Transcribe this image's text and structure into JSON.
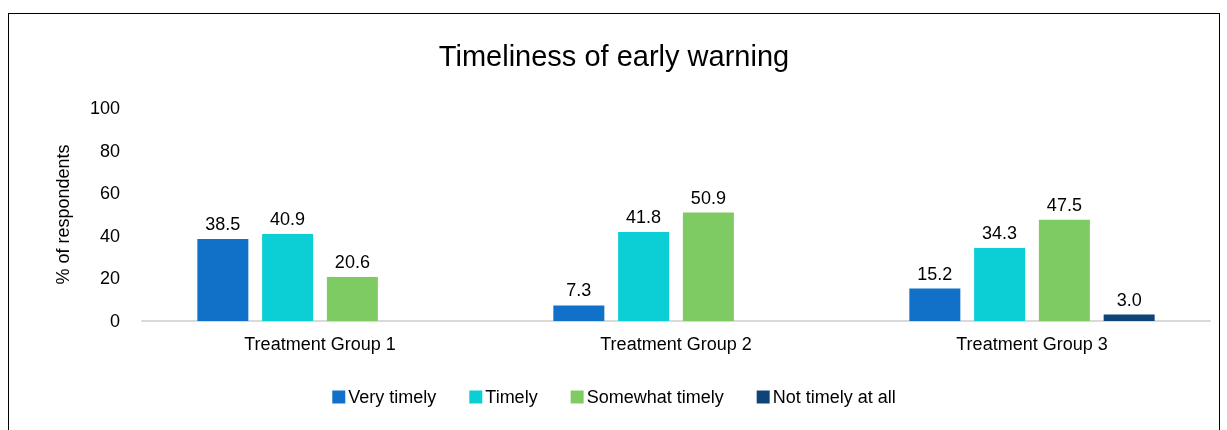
{
  "chart_data": {
    "type": "bar",
    "title": "Timeliness of early warning",
    "ylabel": "% of respondents",
    "categories": [
      "Treatment Group 1",
      "Treatment Group 2",
      "Treatment Group 3"
    ],
    "series": [
      {
        "name": "Very timely",
        "color": "#1170c8",
        "values": [
          38.5,
          7.3,
          15.2
        ],
        "value_labels": [
          "38.5",
          "7.3",
          "15.2"
        ]
      },
      {
        "name": "Timely",
        "color": "#0ccfd6",
        "values": [
          40.9,
          41.8,
          34.3
        ],
        "value_labels": [
          "40.9",
          "41.8",
          "34.3"
        ]
      },
      {
        "name": "Somewhat timely",
        "color": "#7ecb63",
        "values": [
          20.6,
          50.9,
          47.5
        ],
        "value_labels": [
          "20.6",
          "50.9",
          "47.5"
        ]
      },
      {
        "name": "Not timely at all",
        "color": "#0e4477",
        "values": [
          null,
          null,
          3.0
        ],
        "value_labels": [
          null,
          null,
          "3.0"
        ]
      }
    ],
    "ylim": [
      0,
      100
    ],
    "yticks": [
      0,
      20,
      40,
      60,
      80,
      100
    ],
    "legend": "bottom"
  }
}
